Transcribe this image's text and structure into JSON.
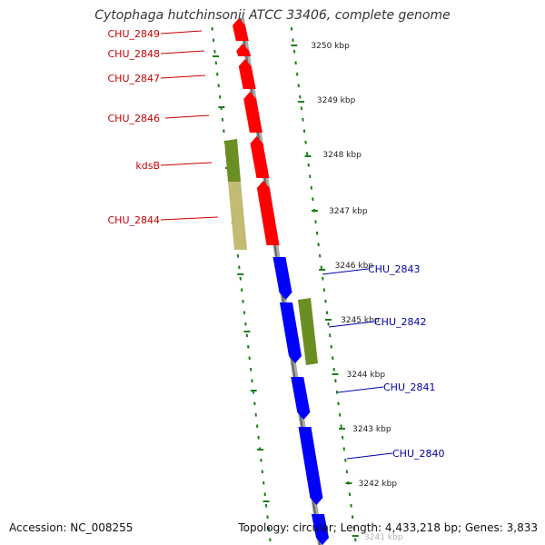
{
  "title": "Cytophaga hutchinsonii ATCC 33406, complete genome",
  "footer": {
    "accession": "Accession: NC_008255",
    "summary": "Topology: circular; Length: 4,433,218 bp; Genes: 3,833"
  },
  "colors": {
    "reverse_cds": "#ff0000",
    "forward_cds": "#0000ff",
    "reverse_label": "#cc0000",
    "forward_label": "#0000aa",
    "cog_dark": "#6b8e23",
    "cog_light": "#c2bb73",
    "gc_dots": "#1a7f1a",
    "backbone": "#888888"
  },
  "ticks": [
    {
      "label": "3250 kbp"
    },
    {
      "label": "3249 kbp"
    },
    {
      "label": "3248 kbp"
    },
    {
      "label": "3247 kbp"
    },
    {
      "label": "3246 kbp"
    },
    {
      "label": "3245 kbp"
    },
    {
      "label": "3244 kbp"
    },
    {
      "label": "3243 kbp"
    },
    {
      "label": "3242 kbp"
    },
    {
      "label": "3241 kbp"
    }
  ],
  "genes_reverse": [
    {
      "name": "CHU_2849"
    },
    {
      "name": "CHU_2848"
    },
    {
      "name": "CHU_2847"
    },
    {
      "name": "CHU_2846"
    },
    {
      "name": "kdsB"
    },
    {
      "name": "CHU_2844"
    }
  ],
  "genes_forward": [
    {
      "name": "CHU_2843"
    },
    {
      "name": "CHU_2842"
    },
    {
      "name": "CHU_2841"
    },
    {
      "name": "CHU_2840"
    }
  ]
}
